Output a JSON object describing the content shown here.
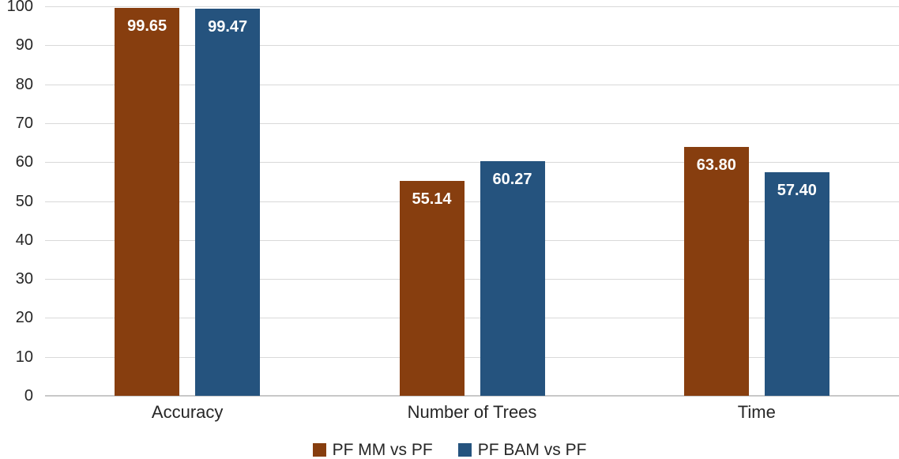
{
  "chart_data": {
    "type": "bar",
    "title": "",
    "categories": [
      "Accuracy",
      "Number of Trees",
      "Time"
    ],
    "series": [
      {
        "name": "PF MM vs PF",
        "color": "#873E0F",
        "values": [
          99.65,
          55.14,
          63.8
        ],
        "value_labels": [
          "99.65",
          "55.14",
          "63.80"
        ]
      },
      {
        "name": "PF BAM vs PF",
        "color": "#25537E",
        "values": [
          99.47,
          60.27,
          57.4
        ],
        "value_labels": [
          "99.47",
          "60.27",
          "57.40"
        ]
      }
    ],
    "y_axis": {
      "min": 0,
      "max": 100,
      "step": 10
    },
    "x_axis_label": "",
    "grid": true,
    "gridline_color": "#d9d9d9",
    "value_label_style": "inside-top-white-bold",
    "legend_position": "bottom-center",
    "background_color": "#ffffff",
    "text_color": "#262626"
  }
}
